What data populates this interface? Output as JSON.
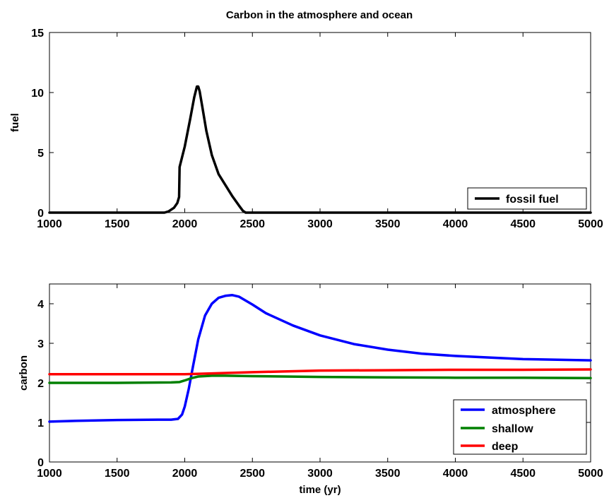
{
  "title": "Carbon in the atmosphere and ocean",
  "chart_data": [
    {
      "type": "line",
      "title": "Carbon in the atmosphere and ocean",
      "xlabel": "",
      "ylabel": "fuel",
      "xlim": [
        1000,
        5000
      ],
      "ylim": [
        0,
        15
      ],
      "xticks": [
        1000,
        1500,
        2000,
        2500,
        3000,
        3500,
        4000,
        4500,
        5000
      ],
      "yticks": [
        0,
        5,
        10,
        15
      ],
      "legend_position": "bottom-right",
      "series": [
        {
          "name": "fossil fuel",
          "color": "#000000",
          "x": [
            1000,
            1850,
            1880,
            1920,
            1945,
            1958,
            1962,
            2000,
            2040,
            2070,
            2090,
            2100,
            2110,
            2130,
            2160,
            2200,
            2250,
            2300,
            2350,
            2400,
            2430,
            2450,
            2500,
            3000,
            4000,
            5000
          ],
          "y": [
            0,
            0,
            0.1,
            0.4,
            0.8,
            1.3,
            3.8,
            5.5,
            7.8,
            9.6,
            10.5,
            10.5,
            10.1,
            8.8,
            6.8,
            4.8,
            3.2,
            2.3,
            1.4,
            0.6,
            0.15,
            0,
            0,
            0,
            0,
            0
          ]
        }
      ]
    },
    {
      "type": "line",
      "title": "",
      "xlabel": "time (yr)",
      "ylabel": "carbon",
      "xlim": [
        1000,
        5000
      ],
      "ylim": [
        0,
        4.5
      ],
      "xticks": [
        1000,
        1500,
        2000,
        2500,
        3000,
        3500,
        4000,
        4500,
        5000
      ],
      "yticks": [
        0,
        1,
        2,
        3,
        4
      ],
      "legend_position": "bottom-right",
      "series": [
        {
          "name": "atmosphere",
          "color": "#0000ff",
          "x": [
            1000,
            1200,
            1500,
            1800,
            1900,
            1950,
            1980,
            2000,
            2030,
            2060,
            2100,
            2150,
            2200,
            2250,
            2300,
            2350,
            2400,
            2500,
            2600,
            2800,
            3000,
            3250,
            3500,
            3750,
            4000,
            4500,
            5000
          ],
          "y": [
            1.02,
            1.04,
            1.06,
            1.07,
            1.07,
            1.09,
            1.2,
            1.4,
            1.85,
            2.4,
            3.1,
            3.7,
            4.0,
            4.15,
            4.2,
            4.22,
            4.18,
            3.98,
            3.76,
            3.45,
            3.2,
            2.98,
            2.84,
            2.74,
            2.68,
            2.6,
            2.57
          ]
        },
        {
          "name": "shallow",
          "color": "#008000",
          "x": [
            1000,
            1500,
            1900,
            1960,
            2000,
            2050,
            2100,
            2200,
            2300,
            2500,
            3000,
            3500,
            4000,
            4500,
            5000
          ],
          "y": [
            2.0,
            2.0,
            2.01,
            2.02,
            2.06,
            2.12,
            2.16,
            2.18,
            2.18,
            2.17,
            2.15,
            2.14,
            2.13,
            2.13,
            2.12
          ]
        },
        {
          "name": "deep",
          "color": "#ff0000",
          "x": [
            1000,
            1500,
            2000,
            2200,
            2500,
            3000,
            3500,
            4000,
            4500,
            5000
          ],
          "y": [
            2.22,
            2.22,
            2.22,
            2.24,
            2.27,
            2.31,
            2.32,
            2.33,
            2.33,
            2.34
          ]
        }
      ]
    }
  ]
}
